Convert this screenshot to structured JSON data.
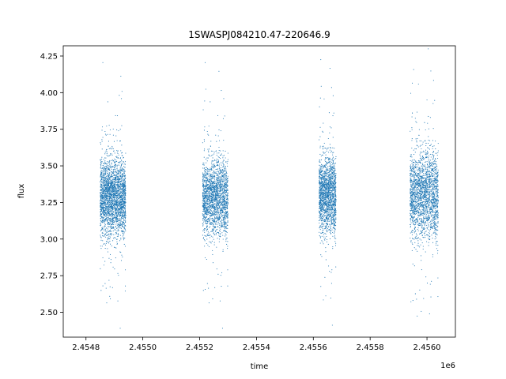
{
  "chart_data": {
    "type": "scatter",
    "title": "1SWASPJ084210.47-220646.9",
    "xlabel": "time",
    "ylabel": "flux",
    "x_offset_label": "1e6",
    "xlim": [
      2.45472,
      2.4561
    ],
    "ylim": [
      2.33,
      4.32
    ],
    "xticks": [
      2.4548,
      2.455,
      2.4552,
      2.4554,
      2.4556,
      2.4558,
      2.456
    ],
    "xtick_labels": [
      "2.4548",
      "2.4550",
      "2.4552",
      "2.4554",
      "2.4556",
      "2.4558",
      "2.4560"
    ],
    "yticks": [
      2.5,
      2.75,
      3.0,
      3.25,
      3.5,
      3.75,
      4.0,
      4.25
    ],
    "ytick_labels": [
      "2.50",
      "2.75",
      "3.00",
      "3.25",
      "3.50",
      "3.75",
      "4.00",
      "4.25"
    ],
    "grid": false,
    "marker_color": "#1f77b4",
    "seasons": [
      {
        "x_start": 2.45485,
        "x_end": 2.45494,
        "median_flux": 3.28,
        "spread": 0.13,
        "n": 2600
      },
      {
        "x_start": 2.45521,
        "x_end": 2.4553,
        "median_flux": 3.28,
        "spread": 0.13,
        "n": 2000
      },
      {
        "x_start": 2.45562,
        "x_end": 2.45568,
        "median_flux": 3.3,
        "spread": 0.13,
        "n": 1700
      },
      {
        "x_start": 2.45594,
        "x_end": 2.45604,
        "median_flux": 3.3,
        "spread": 0.15,
        "n": 2200
      }
    ]
  }
}
